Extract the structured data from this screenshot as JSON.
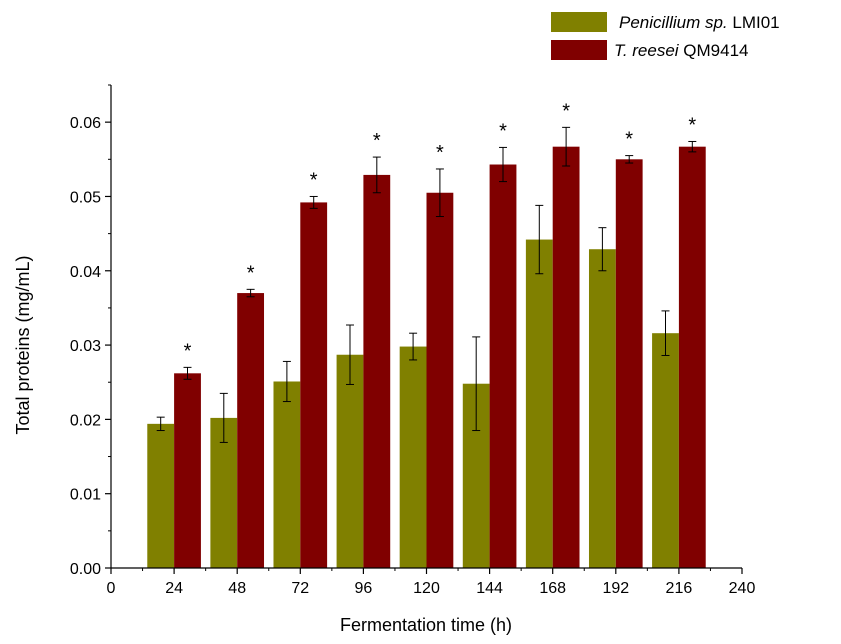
{
  "chart_data": {
    "type": "bar",
    "title": "",
    "xlabel": "Fermentation time (h)",
    "ylabel": "Total proteins (mg/mL)",
    "x_ticks": [
      "0",
      "24",
      "48",
      "72",
      "96",
      "120",
      "144",
      "168",
      "192",
      "216",
      "240"
    ],
    "y_ticks": [
      "0.00",
      "0.01",
      "0.02",
      "0.03",
      "0.04",
      "0.05",
      "0.06"
    ],
    "xlim": [
      0,
      240
    ],
    "ylim": [
      0,
      0.065
    ],
    "grid": false,
    "legend_position": "top-right",
    "categories": [
      24,
      48,
      72,
      96,
      120,
      144,
      168,
      192,
      216
    ],
    "series": [
      {
        "name_italic": "Penicillium sp.",
        "name_rest": " LMI01",
        "color": "#808000",
        "values": [
          0.0194,
          0.0202,
          0.0251,
          0.0287,
          0.0298,
          0.0248,
          0.0442,
          0.0429,
          0.0316
        ],
        "errors": [
          0.0009,
          0.0033,
          0.0027,
          0.004,
          0.0018,
          0.0063,
          0.0046,
          0.0029,
          0.003
        ]
      },
      {
        "name_italic": "T. reesei",
        "name_rest": " QM9414",
        "color": "#800000",
        "values": [
          0.0262,
          0.037,
          0.0492,
          0.0529,
          0.0505,
          0.0543,
          0.0567,
          0.055,
          0.0567
        ],
        "errors": [
          0.0008,
          0.0005,
          0.0008,
          0.0024,
          0.0032,
          0.0023,
          0.0026,
          0.0005,
          0.0007
        ]
      }
    ],
    "annotations": [
      "*",
      "*",
      "*",
      "*",
      "*",
      "*",
      "*",
      "*",
      "*"
    ]
  }
}
